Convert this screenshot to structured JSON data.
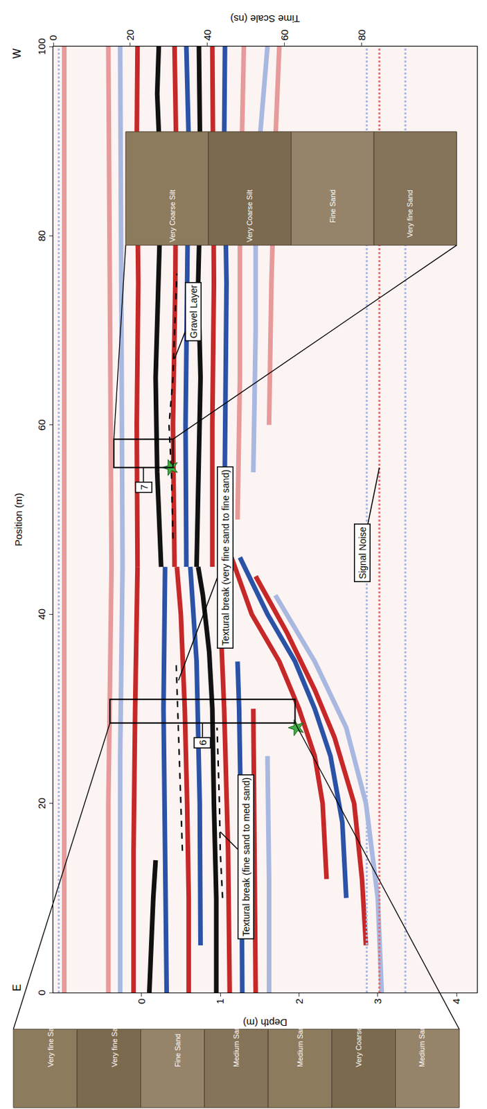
{
  "chart_data": {
    "type": "line",
    "x_label": "Position (m)",
    "y_label": "Depth (m)",
    "y2_label": "Time Scale (ns)",
    "x_ends": [
      "E",
      "W"
    ],
    "xlim": [
      0,
      100
    ],
    "xticks": [
      0,
      20,
      40,
      60,
      80,
      100
    ],
    "ylim": [
      4.26,
      -1.12
    ],
    "yticks": [
      0,
      1,
      2,
      3,
      4
    ],
    "y2lim": [
      110,
      0
    ],
    "y2ticks": [
      0,
      20,
      40,
      60,
      80
    ],
    "grid": false,
    "series": [
      {
        "color": "#a8b8e0",
        "line_style": "dotted",
        "x": [
          0,
          100
        ],
        "values": [
          -1.05,
          -1.05
        ]
      },
      {
        "color": "#e79a9a",
        "line_style": "solid",
        "x": [
          0,
          100
        ],
        "values": [
          -0.98,
          -0.98
        ]
      },
      {
        "color": "#e79a9a",
        "line_style": "solid",
        "x": [
          0,
          20,
          45,
          70,
          100
        ],
        "values": [
          -0.42,
          -0.42,
          -0.38,
          -0.4,
          -0.42
        ]
      },
      {
        "color": "#a8b8e0",
        "line_style": "solid",
        "x": [
          0,
          25,
          45,
          70,
          100
        ],
        "values": [
          -0.27,
          -0.27,
          -0.24,
          -0.26,
          -0.27
        ]
      },
      {
        "color": "#c62828",
        "line_style": "solid",
        "x": [
          0,
          15,
          30,
          45
        ],
        "values": [
          -0.1,
          -0.1,
          -0.08,
          -0.05
        ]
      },
      {
        "color": "#c62828",
        "line_style": "solid",
        "x": [
          45,
          60,
          75,
          90,
          100
        ],
        "values": [
          -0.05,
          -0.06,
          -0.04,
          -0.06,
          -0.05
        ]
      },
      {
        "color": "#111111",
        "line_style": "solid",
        "x": [
          0,
          5,
          10,
          14
        ],
        "values": [
          0.1,
          0.12,
          0.15,
          0.18
        ]
      },
      {
        "color": "#111111",
        "line_style": "solid",
        "x": [
          45,
          55,
          65,
          75,
          85,
          95,
          100
        ],
        "values": [
          0.25,
          0.2,
          0.18,
          0.22,
          0.25,
          0.2,
          0.22
        ]
      },
      {
        "color": "#2a52a6",
        "line_style": "solid",
        "x": [
          0,
          15,
          30,
          45
        ],
        "values": [
          0.32,
          0.3,
          0.28,
          0.3
        ]
      },
      {
        "color": "#c62828",
        "line_style": "solid",
        "x": [
          45,
          60,
          75,
          90,
          100
        ],
        "values": [
          0.42,
          0.4,
          0.43,
          0.44,
          0.42
        ]
      },
      {
        "color": "#c62828",
        "line_style": "solid",
        "x": [
          0,
          10,
          20,
          30,
          40,
          45
        ],
        "values": [
          0.6,
          0.6,
          0.58,
          0.55,
          0.5,
          0.45
        ]
      },
      {
        "color": "#2a52a6",
        "line_style": "solid",
        "x": [
          45,
          60,
          75,
          90,
          100
        ],
        "values": [
          0.57,
          0.56,
          0.58,
          0.6,
          0.57
        ]
      },
      {
        "color": "#2a52a6",
        "line_style": "solid",
        "x": [
          5,
          20,
          35,
          45
        ],
        "values": [
          0.75,
          0.74,
          0.7,
          0.62
        ]
      },
      {
        "color": "#111111",
        "line_style": "solid",
        "x": [
          45,
          55,
          65,
          75,
          85,
          100
        ],
        "values": [
          0.7,
          0.72,
          0.75,
          0.72,
          0.75,
          0.73
        ]
      },
      {
        "color": "#111111",
        "line_style": "solid",
        "x": [
          0,
          10,
          20,
          30,
          36,
          42,
          45
        ],
        "values": [
          0.95,
          0.95,
          0.92,
          0.9,
          0.86,
          0.78,
          0.72
        ]
      },
      {
        "color": "#c62828",
        "line_style": "solid",
        "x": [
          45,
          60,
          75,
          90,
          100
        ],
        "values": [
          0.9,
          0.9,
          0.92,
          0.9,
          0.9
        ]
      },
      {
        "color": "#c62828",
        "line_style": "solid",
        "x": [
          0,
          15,
          30,
          40
        ],
        "values": [
          1.12,
          1.1,
          1.05,
          1.0
        ]
      },
      {
        "color": "#2a52a6",
        "line_style": "solid",
        "x": [
          48,
          60,
          75,
          90,
          100
        ],
        "values": [
          1.05,
          1.06,
          1.08,
          1.05,
          1.06
        ]
      },
      {
        "color": "#2a52a6",
        "line_style": "solid",
        "x": [
          0,
          15,
          30,
          35
        ],
        "values": [
          1.28,
          1.27,
          1.24,
          1.22
        ]
      },
      {
        "color": "#e79a9a",
        "line_style": "solid",
        "x": [
          50,
          65,
          80,
          100
        ],
        "values": [
          1.22,
          1.25,
          1.25,
          1.3
        ]
      },
      {
        "color": "#c62828",
        "line_style": "solid",
        "x": [
          0,
          15,
          30
        ],
        "values": [
          1.45,
          1.44,
          1.42
        ]
      },
      {
        "color": "#a8b8e0",
        "line_style": "solid",
        "x": [
          55,
          70,
          85,
          95,
          100
        ],
        "values": [
          1.42,
          1.45,
          1.45,
          1.55,
          1.6
        ]
      },
      {
        "color": "#a8b8e0",
        "line_style": "solid",
        "x": [
          0,
          12,
          25
        ],
        "values": [
          1.62,
          1.62,
          1.6
        ]
      },
      {
        "color": "#e79a9a",
        "line_style": "solid",
        "x": [
          60,
          75,
          90,
          100
        ],
        "values": [
          1.62,
          1.65,
          1.7,
          1.75
        ]
      },
      {
        "color": "#c62828",
        "line_style": "solid",
        "x": [
          47,
          40,
          35,
          30,
          25,
          20,
          12
        ],
        "values": [
          1.1,
          1.4,
          1.75,
          2.0,
          2.2,
          2.3,
          2.35
        ]
      },
      {
        "color": "#2a52a6",
        "line_style": "solid",
        "x": [
          46,
          40,
          35,
          30,
          25,
          18,
          10
        ],
        "values": [
          1.25,
          1.6,
          1.95,
          2.2,
          2.4,
          2.55,
          2.6
        ]
      },
      {
        "color": "#c62828",
        "line_style": "solid",
        "x": [
          44,
          38,
          32,
          27,
          20,
          12,
          5
        ],
        "values": [
          1.45,
          1.85,
          2.2,
          2.45,
          2.7,
          2.8,
          2.85
        ]
      },
      {
        "color": "#a8b8e0",
        "line_style": "solid",
        "x": [
          42,
          35,
          28,
          20,
          10,
          0
        ],
        "values": [
          1.7,
          2.2,
          2.6,
          2.85,
          3.0,
          3.05
        ]
      },
      {
        "color": "#a8b8e0",
        "line_style": "dotted",
        "x": [
          0,
          100
        ],
        "values": [
          2.86,
          2.86
        ]
      },
      {
        "color": "#e07070",
        "line_style": "dotted",
        "x": [
          0,
          100
        ],
        "values": [
          3.02,
          3.02
        ]
      },
      {
        "color": "#a8b8e0",
        "line_style": "dotted",
        "x": [
          0,
          100
        ],
        "values": [
          3.35,
          3.35
        ]
      },
      {
        "color": "#000000",
        "line_style": "dashed",
        "x": [
          15,
          20,
          25,
          30,
          35
        ],
        "values": [
          0.52,
          0.5,
          0.48,
          0.46,
          0.44
        ]
      },
      {
        "color": "#000000",
        "line_style": "dashed",
        "x": [
          10,
          15,
          20,
          25,
          28
        ],
        "values": [
          1.03,
          1.0,
          0.99,
          0.97,
          0.96
        ]
      },
      {
        "color": "#000000",
        "line_style": "dashed",
        "x": [
          48,
          55,
          60,
          65,
          70,
          76
        ],
        "values": [
          0.4,
          0.38,
          0.35,
          0.4,
          0.42,
          0.45
        ]
      }
    ],
    "annotations": [
      {
        "text": "Textural break (fine sand to med sand)",
        "x": 17,
        "y": 1.0
      },
      {
        "text": "Textural break (very fine sand to fine sand)",
        "x": 33,
        "y": 0.47
      },
      {
        "text": "Gravel Layer",
        "x": 67,
        "y": 0.42
      },
      {
        "text": "Signal Noise",
        "x": 55.5,
        "y": 3.02
      }
    ],
    "cores": [
      {
        "label": "6",
        "position": [
          28.5,
          31
        ],
        "depth": [
          -0.4,
          1.95
        ],
        "layers": [
          "Very fine Sand",
          "Very fine Sand",
          "Fine Sand",
          "Medium Sand",
          "Medium Sand",
          "Very Coarse Silt",
          "Medium Sand"
        ]
      },
      {
        "label": "7",
        "position": [
          55.5,
          58.5
        ],
        "depth": [
          -0.35,
          0.4
        ],
        "layers": [
          "Very Coarse Silt",
          "Very Coarse Silt",
          "Fine Sand",
          "Very fine Sand"
        ]
      }
    ],
    "samples": {
      "x": [
        28,
        55.5
      ],
      "y": [
        1.97,
        0.37
      ],
      "marker": "star",
      "color": "#3cb043"
    }
  }
}
